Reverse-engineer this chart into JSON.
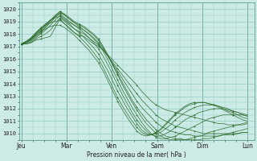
{
  "bg_color": "#cceae6",
  "grid_color": "#88c4b8",
  "line_color": "#2d6b2d",
  "ylabel_text": "Pression niveau de la mer( hPa )",
  "xlabel_ticks": [
    "Jeu",
    "Mar",
    "Ven",
    "Sam",
    "Dim",
    "Lun"
  ],
  "xtick_positions": [
    0,
    1,
    2,
    3,
    4,
    5
  ],
  "ylim": [
    1009.5,
    1020.5
  ],
  "yticks": [
    1010,
    1011,
    1012,
    1013,
    1014,
    1015,
    1016,
    1017,
    1018,
    1019,
    1020
  ],
  "series": [
    [
      1017.2,
      1017.2,
      1017.3,
      1017.5,
      1017.6,
      1017.7,
      1017.8,
      1018.5,
      1019.2,
      1018.8,
      1018.4,
      1018.1,
      1017.9,
      1017.8,
      1017.5,
      1017.2,
      1017.0,
      1016.7,
      1016.3,
      1015.9,
      1015.5,
      1015.1,
      1014.7,
      1014.3,
      1013.9,
      1013.4,
      1013.0,
      1012.6,
      1012.3,
      1012.1,
      1011.9,
      1011.8,
      1011.7,
      1011.6,
      1011.5,
      1011.4,
      1011.3,
      1011.2,
      1011.1,
      1011.0,
      1010.9,
      1010.8,
      1010.8,
      1010.7,
      1010.7,
      1010.7,
      1010.7,
      1010.8
    ],
    [
      1017.2,
      1017.2,
      1017.3,
      1017.6,
      1017.8,
      1018.0,
      1018.3,
      1018.8,
      1019.3,
      1019.0,
      1018.7,
      1018.4,
      1018.2,
      1018.0,
      1017.7,
      1017.4,
      1017.1,
      1016.7,
      1016.2,
      1015.7,
      1015.2,
      1014.7,
      1014.2,
      1013.7,
      1013.2,
      1012.7,
      1012.3,
      1011.9,
      1011.5,
      1011.2,
      1011.0,
      1010.8,
      1010.6,
      1010.5,
      1010.4,
      1010.3,
      1010.2,
      1010.1,
      1010.0,
      1010.0,
      1010.0,
      1010.0,
      1010.0,
      1010.0,
      1010.0,
      1010.0,
      1010.1,
      1010.1
    ],
    [
      1017.2,
      1017.2,
      1017.4,
      1017.7,
      1018.0,
      1018.3,
      1018.7,
      1019.1,
      1019.5,
      1019.2,
      1018.9,
      1018.7,
      1018.5,
      1018.3,
      1018.0,
      1017.7,
      1017.3,
      1016.8,
      1016.2,
      1015.6,
      1015.0,
      1014.4,
      1013.8,
      1013.2,
      1012.6,
      1012.1,
      1011.7,
      1011.3,
      1010.9,
      1010.6,
      1010.4,
      1010.2,
      1010.1,
      1010.0,
      1009.9,
      1009.9,
      1009.8,
      1009.8,
      1009.8,
      1009.8,
      1009.8,
      1009.8,
      1009.9,
      1009.9,
      1009.9,
      1010.0,
      1010.1,
      1010.1
    ],
    [
      1017.2,
      1017.3,
      1017.5,
      1017.8,
      1018.1,
      1018.5,
      1018.9,
      1019.3,
      1019.7,
      1019.5,
      1019.2,
      1018.9,
      1018.7,
      1018.5,
      1018.2,
      1017.9,
      1017.5,
      1016.9,
      1016.2,
      1015.5,
      1014.8,
      1014.1,
      1013.4,
      1012.7,
      1012.1,
      1011.6,
      1011.1,
      1010.7,
      1010.3,
      1010.0,
      1009.8,
      1009.7,
      1009.6,
      1009.6,
      1009.5,
      1009.5,
      1009.5,
      1009.5,
      1009.6,
      1009.6,
      1009.7,
      1009.8,
      1009.9,
      1010.0,
      1010.1,
      1010.2,
      1010.3,
      1010.4
    ],
    [
      1017.2,
      1017.3,
      1017.5,
      1017.9,
      1018.2,
      1018.6,
      1019.0,
      1019.4,
      1019.8,
      1019.6,
      1019.3,
      1019.0,
      1018.8,
      1018.6,
      1018.3,
      1018.0,
      1017.6,
      1017.0,
      1016.3,
      1015.5,
      1014.7,
      1013.9,
      1013.2,
      1012.5,
      1011.9,
      1011.3,
      1010.8,
      1010.4,
      1010.0,
      1009.8,
      1009.6,
      1009.5,
      1009.5,
      1009.5,
      1009.5,
      1009.6,
      1009.7,
      1009.8,
      1009.9,
      1010.1,
      1010.2,
      1010.3,
      1010.4,
      1010.5,
      1010.6,
      1010.7,
      1010.8,
      1010.9
    ],
    [
      1017.2,
      1017.3,
      1017.6,
      1018.0,
      1018.3,
      1018.7,
      1019.1,
      1019.5,
      1019.8,
      1019.5,
      1019.2,
      1018.9,
      1018.6,
      1018.3,
      1018.0,
      1017.6,
      1017.2,
      1016.6,
      1015.9,
      1015.1,
      1014.3,
      1013.5,
      1012.8,
      1012.1,
      1011.5,
      1010.9,
      1010.4,
      1010.0,
      1009.7,
      1009.6,
      1009.6,
      1009.7,
      1009.8,
      1010.0,
      1010.2,
      1010.4,
      1010.6,
      1010.8,
      1011.0,
      1011.2,
      1011.3,
      1011.4,
      1011.5,
      1011.5,
      1011.5,
      1011.5,
      1011.5,
      1011.4
    ],
    [
      1017.2,
      1017.4,
      1017.6,
      1018.0,
      1018.4,
      1018.8,
      1019.1,
      1019.4,
      1019.6,
      1019.3,
      1019.0,
      1018.7,
      1018.4,
      1018.1,
      1017.7,
      1017.3,
      1016.8,
      1016.2,
      1015.5,
      1014.7,
      1013.9,
      1013.1,
      1012.4,
      1011.7,
      1011.1,
      1010.6,
      1010.2,
      1009.9,
      1009.8,
      1009.8,
      1010.0,
      1010.2,
      1010.5,
      1010.8,
      1011.1,
      1011.3,
      1011.5,
      1011.7,
      1011.8,
      1011.9,
      1012.0,
      1012.0,
      1012.0,
      1011.9,
      1011.8,
      1011.7,
      1011.6,
      1011.5
    ],
    [
      1017.2,
      1017.4,
      1017.7,
      1018.1,
      1018.5,
      1018.8,
      1019.1,
      1019.3,
      1019.4,
      1019.1,
      1018.8,
      1018.4,
      1018.1,
      1017.7,
      1017.3,
      1016.9,
      1016.4,
      1015.7,
      1015.0,
      1014.2,
      1013.4,
      1012.7,
      1012.0,
      1011.4,
      1010.8,
      1010.3,
      1010.0,
      1009.9,
      1010.0,
      1010.1,
      1010.4,
      1010.7,
      1011.1,
      1011.4,
      1011.7,
      1011.9,
      1012.1,
      1012.2,
      1012.3,
      1012.3,
      1012.3,
      1012.2,
      1012.1,
      1012.0,
      1011.8,
      1011.7,
      1011.5,
      1011.4
    ],
    [
      1017.2,
      1017.4,
      1017.7,
      1018.1,
      1018.4,
      1018.7,
      1018.9,
      1019.0,
      1019.1,
      1018.8,
      1018.5,
      1018.1,
      1017.8,
      1017.4,
      1017.0,
      1016.5,
      1016.0,
      1015.3,
      1014.5,
      1013.7,
      1012.9,
      1012.2,
      1011.6,
      1011.0,
      1010.5,
      1010.1,
      1009.9,
      1009.9,
      1010.1,
      1010.3,
      1010.7,
      1011.1,
      1011.5,
      1011.8,
      1012.1,
      1012.3,
      1012.4,
      1012.5,
      1012.5,
      1012.4,
      1012.3,
      1012.2,
      1012.0,
      1011.8,
      1011.7,
      1011.5,
      1011.3,
      1011.2
    ],
    [
      1017.2,
      1017.4,
      1017.6,
      1017.9,
      1018.2,
      1018.4,
      1018.6,
      1018.7,
      1018.7,
      1018.5,
      1018.2,
      1017.9,
      1017.5,
      1017.1,
      1016.7,
      1016.2,
      1015.7,
      1015.0,
      1014.2,
      1013.4,
      1012.6,
      1011.9,
      1011.3,
      1010.7,
      1010.2,
      1009.9,
      1009.8,
      1009.9,
      1010.1,
      1010.4,
      1010.8,
      1011.2,
      1011.6,
      1011.9,
      1012.2,
      1012.4,
      1012.5,
      1012.5,
      1012.5,
      1012.4,
      1012.3,
      1012.1,
      1011.9,
      1011.7,
      1011.5,
      1011.3,
      1011.1,
      1011.0
    ]
  ]
}
